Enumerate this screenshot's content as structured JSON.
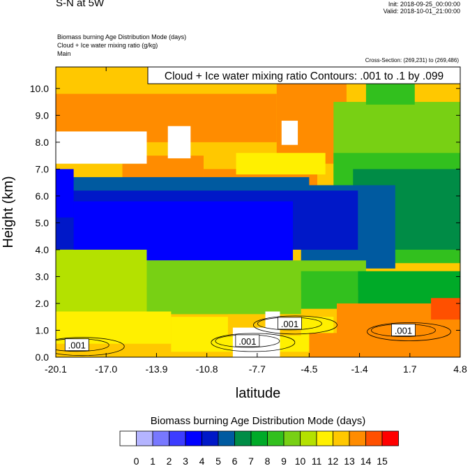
{
  "header": {
    "title": "S-N at 5W",
    "init": "Init: 2018-09-25_00:00:00",
    "valid": "Valid: 2018-10-01_21:00:00",
    "field1": "Biomass burning Age Distribution Mode   (days)",
    "field2": "Cloud + Ice water mixing ratio   (g/kg)",
    "field3": "Main",
    "cross_section": "Cross-Section: (269,231) to (269,486)"
  },
  "chart_data": {
    "type": "heatmap",
    "contour_label": "Cloud + Ice water mixing ratio Contours: .001 to .1 by .099",
    "xlabel": "latitude",
    "ylabel": "Height (km)",
    "x_ticks": [
      "-20.1",
      "-17.0",
      "-13.9",
      "-10.8",
      "-7.7",
      "-4.5",
      "-1.4",
      "1.7",
      "4.8"
    ],
    "x_tick_values": [
      -20.1,
      -17.0,
      -13.9,
      -10.8,
      -7.7,
      -4.5,
      -1.4,
      1.7,
      4.8
    ],
    "y_ticks": [
      "0.0",
      "1.0",
      "2.0",
      "3.0",
      "4.0",
      "5.0",
      "6.0",
      "7.0",
      "8.0",
      "9.0",
      "10.0"
    ],
    "y_tick_values": [
      0,
      1,
      2,
      3,
      4,
      5,
      6,
      7,
      8,
      9,
      10
    ],
    "xlim": [
      -20.1,
      4.8
    ],
    "ylim": [
      0,
      10.8
    ],
    "contour_level_labels": [
      ".001",
      ".001",
      ".001",
      ".001"
    ],
    "contour_label_positions": [
      {
        "lat": -18.8,
        "z": 0.45
      },
      {
        "lat": -8.3,
        "z": 0.6
      },
      {
        "lat": -5.7,
        "z": 1.25
      },
      {
        "lat": 1.3,
        "z": 1.0
      }
    ],
    "colorbar": {
      "title": "Biomass burning Age Distribution Mode  (days)",
      "labels": [
        "0",
        "1",
        "2",
        "3",
        "4",
        "5",
        "6",
        "7",
        "8",
        "9",
        "10",
        "11",
        "12",
        "13",
        "14",
        "15"
      ],
      "colors": [
        "#ffffff",
        "#b4b4ff",
        "#7878ff",
        "#3c3cff",
        "#0000ff",
        "#0018c8",
        "#005aa0",
        "#008c46",
        "#00aa28",
        "#32c01e",
        "#78d014",
        "#b4e100",
        "#fff000",
        "#ffc800",
        "#ff8c00",
        "#ff5000",
        "#ff0000"
      ]
    },
    "regions": [
      {
        "days": 13,
        "lat": [
          -20.1,
          4.8
        ],
        "z": [
          0,
          10.8
        ]
      },
      {
        "days": 14,
        "lat": [
          -20.1,
          -6.5
        ],
        "z": [
          8.0,
          9.8
        ]
      },
      {
        "days": 14,
        "lat": [
          -6.5,
          -2.2
        ],
        "z": [
          7.2,
          10.4
        ]
      },
      {
        "days": 14,
        "lat": [
          -16.0,
          -11.0
        ],
        "z": [
          6.2,
          7.5
        ]
      },
      {
        "days": 14,
        "lat": [
          -11.0,
          -4.0
        ],
        "z": [
          6.2,
          7.0
        ]
      },
      {
        "days": 12,
        "lat": [
          -9.0,
          -3.5
        ],
        "z": [
          6.8,
          7.6
        ]
      },
      {
        "days": 11,
        "lat": [
          -18.5,
          -15.0
        ],
        "z": [
          7.2,
          8.4
        ]
      },
      {
        "days": 10,
        "lat": [
          -3.0,
          4.8
        ],
        "z": [
          6.6,
          9.5
        ]
      },
      {
        "days": 9,
        "lat": [
          -3.0,
          4.8
        ],
        "z": [
          3.5,
          7.6
        ]
      },
      {
        "days": 7,
        "lat": [
          -1.8,
          4.8
        ],
        "z": [
          4.0,
          7.0
        ]
      },
      {
        "days": 6,
        "lat": [
          -5.0,
          0.8
        ],
        "z": [
          3.3,
          6.4
        ]
      },
      {
        "days": 9,
        "lat": [
          -1.0,
          2.0
        ],
        "z": [
          9.4,
          10.8
        ]
      },
      {
        "days": 0,
        "lat": [
          -20.1,
          -14.5
        ],
        "z": [
          7.2,
          8.4
        ]
      },
      {
        "days": 0,
        "lat": [
          -13.2,
          -11.8
        ],
        "z": [
          7.4,
          8.6
        ]
      },
      {
        "days": 0,
        "lat": [
          -6.2,
          -5.2
        ],
        "z": [
          7.9,
          8.8
        ]
      },
      {
        "days": 6,
        "lat": [
          -20.1,
          -4.5
        ],
        "z": [
          5.4,
          6.7
        ]
      },
      {
        "days": 5,
        "lat": [
          -20.1,
          -1.5
        ],
        "z": [
          4.0,
          6.2
        ]
      },
      {
        "days": 4,
        "lat": [
          -19.0,
          -5.5
        ],
        "z": [
          3.6,
          5.8
        ]
      },
      {
        "days": 4,
        "lat": [
          -20.1,
          -19.0
        ],
        "z": [
          5.2,
          7.0
        ]
      },
      {
        "days": 10,
        "lat": [
          -16.5,
          -1.0
        ],
        "z": [
          2.5,
          3.6
        ]
      },
      {
        "days": 11,
        "lat": [
          -20.1,
          -14.5
        ],
        "z": [
          1.7,
          4.0
        ]
      },
      {
        "days": 10,
        "lat": [
          -14.5,
          -5.0
        ],
        "z": [
          1.6,
          2.6
        ]
      },
      {
        "days": 9,
        "lat": [
          -5.0,
          -1.5
        ],
        "z": [
          1.8,
          3.2
        ]
      },
      {
        "days": 8,
        "lat": [
          -1.5,
          4.8
        ],
        "z": [
          1.0,
          3.2
        ]
      },
      {
        "days": 12,
        "lat": [
          -20.1,
          -13.0
        ],
        "z": [
          0.5,
          1.7
        ]
      },
      {
        "days": 12,
        "lat": [
          -13.0,
          -3.0
        ],
        "z": [
          0.2,
          1.5
        ]
      },
      {
        "days": 13,
        "lat": [
          -9.5,
          -5.0
        ],
        "z": [
          0.8,
          1.6
        ]
      },
      {
        "days": 14,
        "lat": [
          -2.8,
          4.8
        ],
        "z": [
          0,
          2.0
        ]
      },
      {
        "days": 14,
        "lat": [
          -4.5,
          -1.0
        ],
        "z": [
          0,
          0.9
        ]
      },
      {
        "days": 15,
        "lat": [
          3.0,
          4.8
        ],
        "z": [
          1.4,
          2.2
        ]
      },
      {
        "days": 0,
        "lat": [
          -9.2,
          -6.6
        ],
        "z": [
          0,
          1.1
        ]
      },
      {
        "days": 0,
        "lat": [
          -7.2,
          -6.3
        ],
        "z": [
          0,
          1.7
        ]
      }
    ]
  }
}
